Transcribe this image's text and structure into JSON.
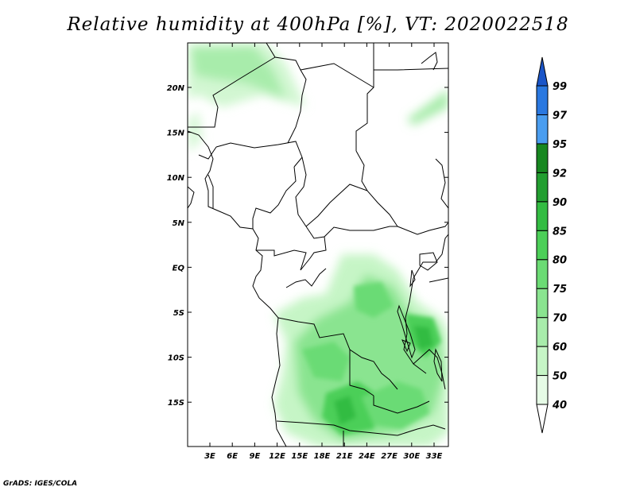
{
  "title": "Relative humidity at 400hPa [%], VT: 2020022518",
  "credit": "GrADS: IGES/COLA",
  "map": {
    "lat_labels": [
      "20N",
      "15N",
      "10N",
      "5N",
      "EQ",
      "5S",
      "10S",
      "15S"
    ],
    "lon_labels": [
      "3E",
      "6E",
      "9E",
      "12E",
      "15E",
      "18E",
      "21E",
      "24E",
      "27E",
      "30E",
      "33E"
    ]
  },
  "colorbar": {
    "levels": [
      "40",
      "50",
      "60",
      "70",
      "75",
      "80",
      "85",
      "90",
      "92",
      "95",
      "97",
      "99"
    ],
    "colors": [
      "#ffffff",
      "#e6fbe6",
      "#c6f5c6",
      "#a8ecab",
      "#8ae490",
      "#6bdb74",
      "#4ccf58",
      "#33bc42",
      "#229e30",
      "#178720",
      "#4a9df0",
      "#2a78e0",
      "#1a55c8"
    ]
  }
}
